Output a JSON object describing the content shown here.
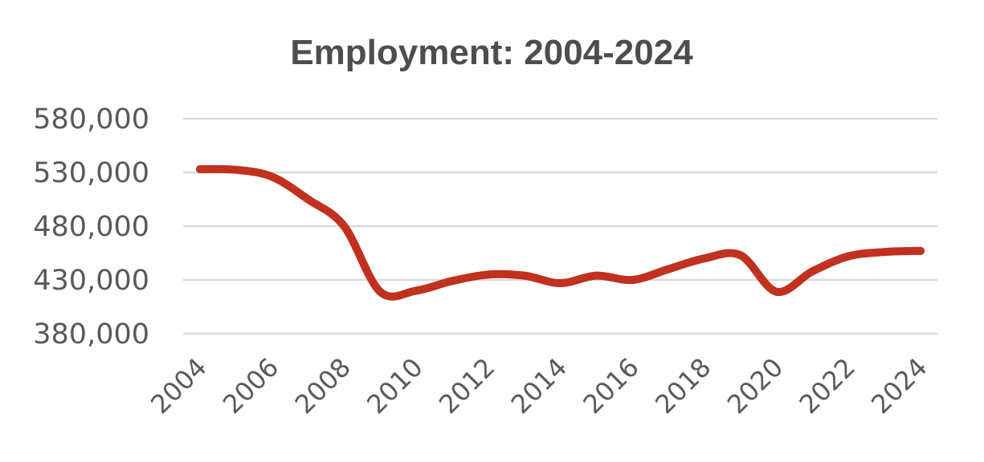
{
  "chart_data": {
    "type": "line",
    "title": "Employment: 2004-2024",
    "xlabel": "",
    "ylabel": "",
    "x": [
      2004,
      2005,
      2006,
      2007,
      2008,
      2009,
      2010,
      2011,
      2012,
      2013,
      2014,
      2015,
      2016,
      2017,
      2018,
      2019,
      2020,
      2021,
      2022,
      2023,
      2024
    ],
    "x_tick_labels": [
      "2004",
      "2006",
      "2008",
      "2010",
      "2012",
      "2014",
      "2016",
      "2018",
      "2020",
      "2022",
      "2024"
    ],
    "y_tick_labels": [
      "580,000",
      "530,000",
      "480,000",
      "430,000",
      "380,000"
    ],
    "yticks": [
      580000,
      530000,
      480000,
      430000,
      380000
    ],
    "ylim": [
      380000,
      580000
    ],
    "grid": true,
    "legend": "none",
    "series": [
      {
        "color": "#c0311f",
        "values": [
          533000,
          532500,
          526000,
          505000,
          480000,
          419000,
          420000,
          429000,
          435000,
          434000,
          427000,
          434000,
          430000,
          440000,
          450000,
          453000,
          419000,
          438000,
          452000,
          456000,
          457000
        ]
      }
    ]
  }
}
